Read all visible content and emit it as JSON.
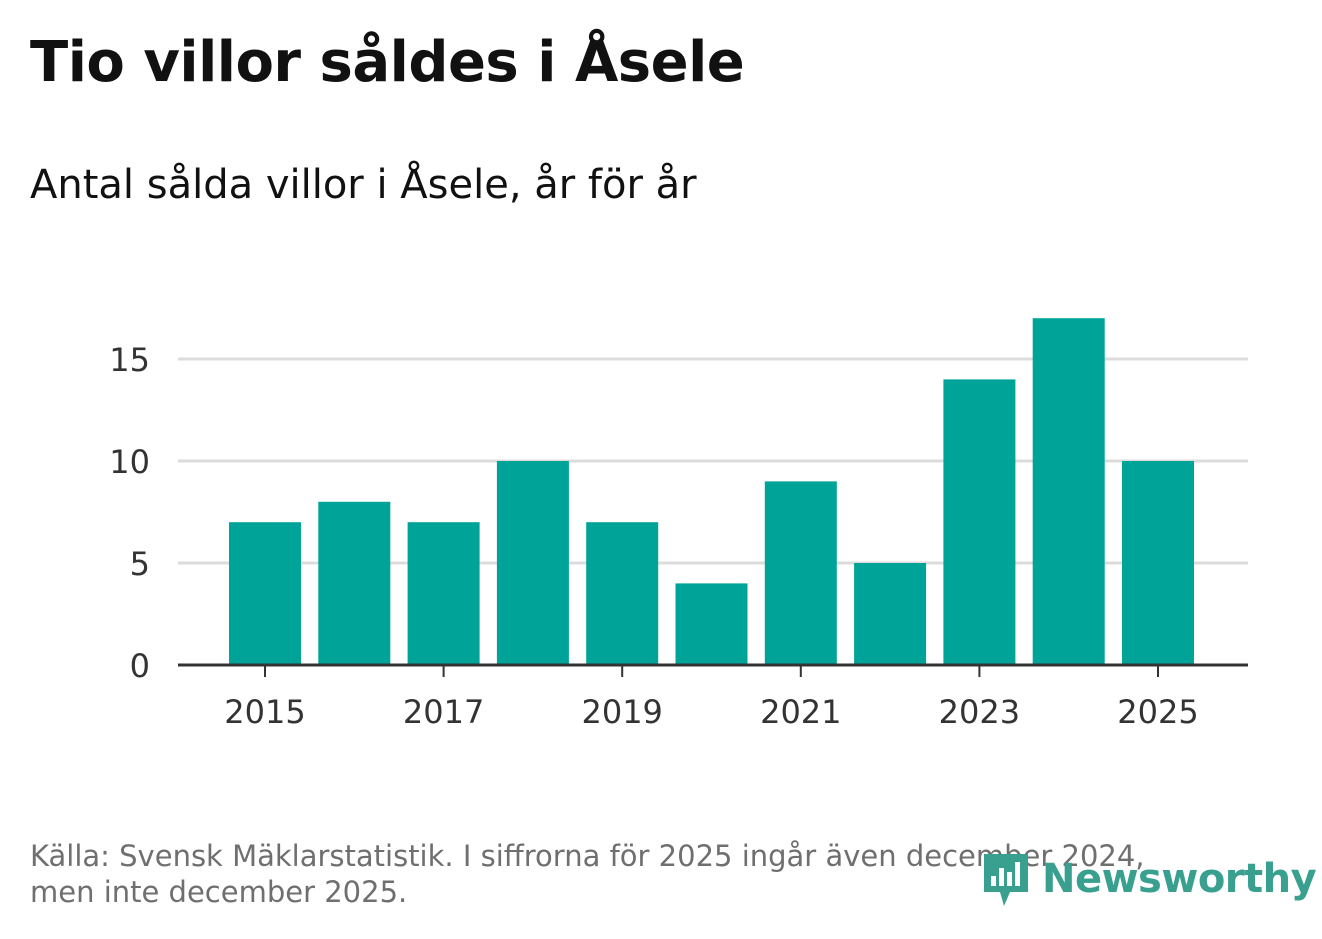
{
  "title": "Tio villor såldes i Åsele",
  "subtitle": "Antal sålda villor i Åsele, år för år",
  "footnote_line1": "Källa: Svensk Mäklarstatistik. I siffrorna för 2025 ingår även december 2024,",
  "footnote_line2": "men inte december 2025.",
  "logo_text": "Newsworthy",
  "colors": {
    "bar": "#00a398",
    "grid": "#dcdcdc",
    "axis": "#333333",
    "tick_text": "#333333",
    "logo": "#39a08f"
  },
  "chart_data": {
    "type": "bar",
    "title": "Tio villor såldes i Åsele",
    "subtitle": "Antal sålda villor i Åsele, år för år",
    "xlabel": "",
    "ylabel": "",
    "categories": [
      "2015",
      "2016",
      "2017",
      "2018",
      "2019",
      "2020",
      "2021",
      "2022",
      "2023",
      "2024",
      "2025"
    ],
    "values": [
      7,
      8,
      7,
      10,
      7,
      4,
      9,
      5,
      14,
      17,
      10
    ],
    "x_tick_labels": [
      "2015",
      "2017",
      "2019",
      "2021",
      "2023",
      "2025"
    ],
    "y_ticks": [
      0,
      5,
      10,
      15
    ],
    "ylim": [
      0,
      17
    ],
    "grid": true,
    "legend": "none"
  }
}
